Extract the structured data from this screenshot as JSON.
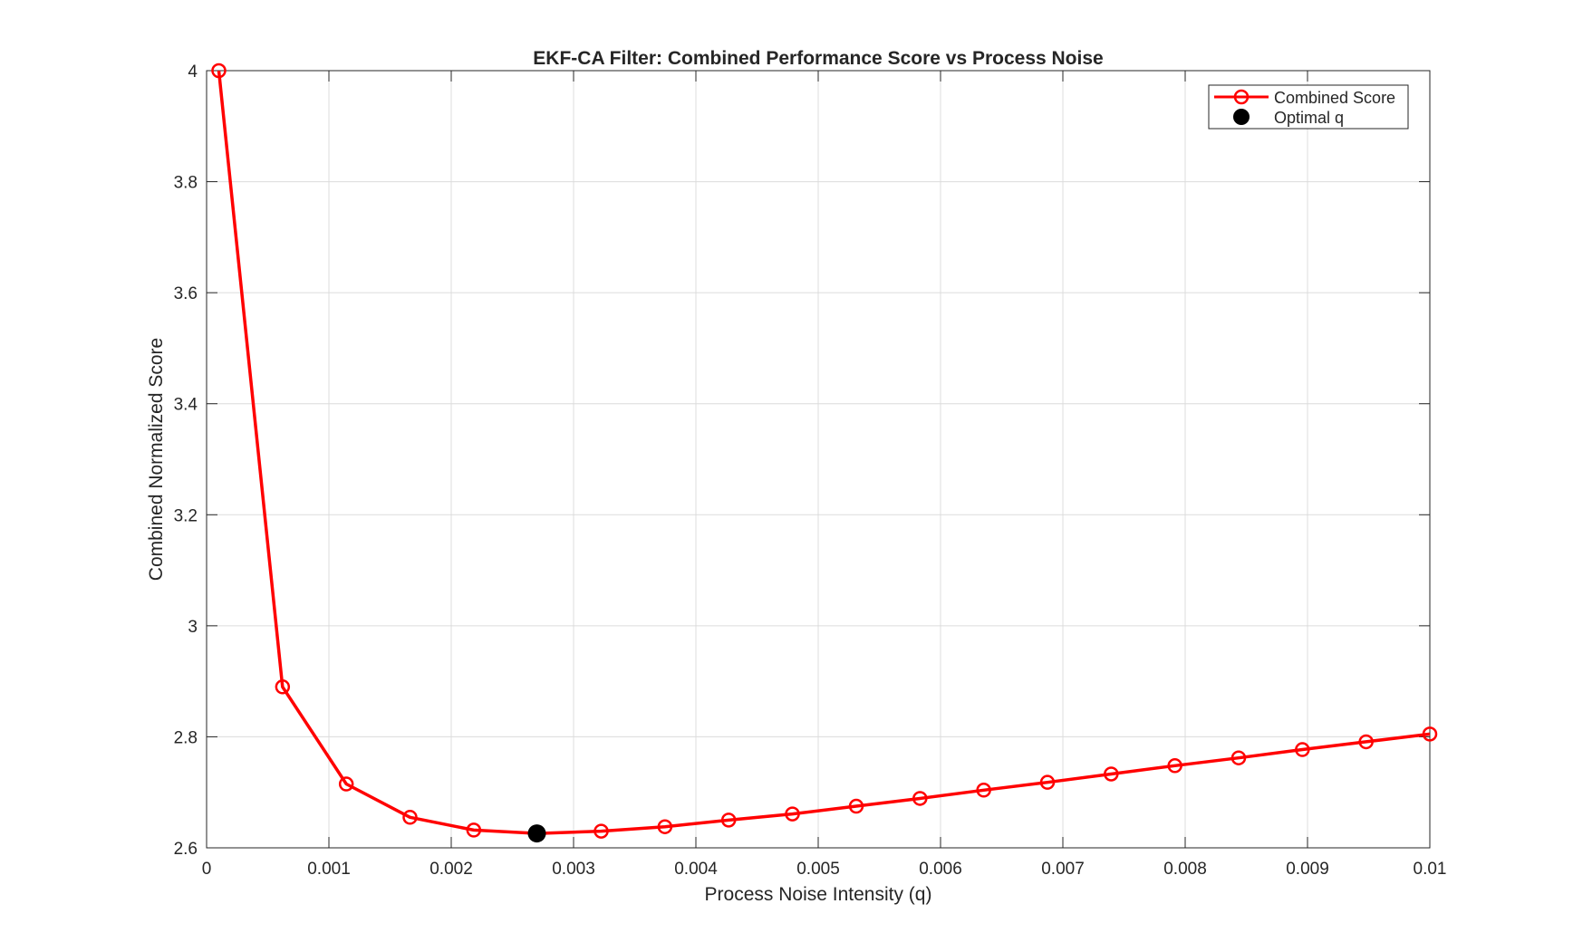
{
  "chart_data": {
    "type": "line",
    "title": "EKF-CA Filter: Combined Performance Score vs Process Noise",
    "xlabel": "Process Noise Intensity (q)",
    "ylabel": "Combined Normalized Score",
    "xlim": [
      0,
      0.01
    ],
    "ylim": [
      2.6,
      4.0
    ],
    "xticks": [
      0,
      0.001,
      0.002,
      0.003,
      0.004,
      0.005,
      0.006,
      0.007,
      0.008,
      0.009,
      0.01
    ],
    "xtick_labels": [
      "0",
      "0.001",
      "0.002",
      "0.003",
      "0.004",
      "0.005",
      "0.006",
      "0.007",
      "0.008",
      "0.009",
      "0.01"
    ],
    "yticks": [
      2.6,
      2.8,
      3.0,
      3.2,
      3.4,
      3.6,
      3.8,
      4.0
    ],
    "ytick_labels": [
      "2.6",
      "2.8",
      "3",
      "3.2",
      "3.4",
      "3.6",
      "3.8",
      "4"
    ],
    "grid": true,
    "legend_position": "top-right",
    "series": [
      {
        "name": "Combined Score",
        "color": "#ff0000",
        "marker": "open-circle",
        "x": [
          0.0001,
          0.000621,
          0.001142,
          0.001663,
          0.002184,
          0.002705,
          0.003226,
          0.003747,
          0.004268,
          0.004789,
          0.005311,
          0.005832,
          0.006353,
          0.006874,
          0.007395,
          0.007916,
          0.008437,
          0.008958,
          0.009479,
          0.01
        ],
        "y": [
          4.0,
          2.89,
          2.715,
          2.655,
          2.632,
          2.626,
          2.63,
          2.638,
          2.65,
          2.661,
          2.675,
          2.689,
          2.704,
          2.718,
          2.733,
          2.748,
          2.762,
          2.777,
          2.791,
          2.805
        ]
      },
      {
        "name": "Optimal q",
        "color": "#000000",
        "marker": "filled-circle",
        "x": [
          0.0027
        ],
        "y": [
          2.626
        ]
      }
    ]
  }
}
